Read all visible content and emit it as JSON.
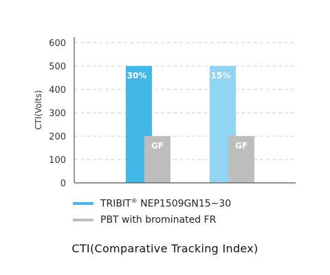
{
  "chart_data": {
    "type": "bar",
    "categories": [
      "",
      ""
    ],
    "ylabel": "CTI(Volts)",
    "ylim": [
      0,
      600
    ],
    "yticks": [
      0,
      100,
      200,
      300,
      400,
      500,
      600
    ],
    "grid": true,
    "series": [
      {
        "name": "TRIBIT",
        "name_mark": "®",
        "name_rest": " NEP1509GN15~30",
        "values": [
          500,
          500
        ],
        "labels": [
          "30%",
          "15%"
        ],
        "colors": [
          "#41b8e6",
          "#90d5f2"
        ]
      },
      {
        "name": "PBT with brominated FR",
        "values": [
          200,
          200
        ],
        "labels": [
          "GF",
          "GF"
        ],
        "colors": [
          "#bdbdbd",
          "#bdbdbd"
        ]
      }
    ],
    "legend_position": "bottom-left",
    "caption": "CTI(Comparative Tracking Index)"
  },
  "colors": {
    "grid": "#cccccc",
    "axis": "#555555",
    "legend_series1": "#41b8e6",
    "legend_series2": "#bdbdbd"
  }
}
